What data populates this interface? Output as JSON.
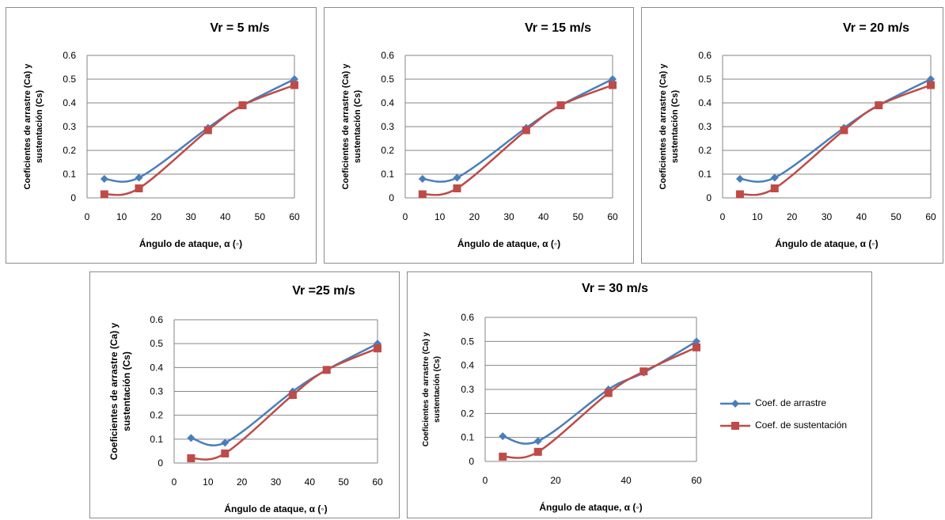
{
  "colors": {
    "arrastre": "#4a7ebb",
    "sustentacion": "#be4b48",
    "grid": "#868686",
    "axis": "#868686"
  },
  "legend": {
    "arrastre_label": "Coef. de arrastre",
    "sustentacion_label": "Coef. de sustentación"
  },
  "chart_data": [
    {
      "type": "line",
      "title": "Vr = 5 m/s",
      "xlabel": "Ángulo de ataque, α (◦)",
      "ylabel": [
        "Coeficientes de arrastre (Ca) y",
        "sustentación (Cs)"
      ],
      "xlim": [
        0,
        60
      ],
      "xticks": [
        0,
        10,
        20,
        30,
        40,
        50,
        60
      ],
      "ylim": [
        0,
        0.6
      ],
      "yticks": [
        "0",
        "0.1",
        "0.2",
        "0.3",
        "0.4",
        "0.5",
        "0.6"
      ],
      "grid": true,
      "x": [
        5,
        15,
        35,
        45,
        60
      ],
      "series": [
        {
          "name": "Coef. de arrastre",
          "values": [
            0.08,
            0.085,
            0.295,
            0.39,
            0.5
          ]
        },
        {
          "name": "Coef. de sustentación",
          "values": [
            0.015,
            0.04,
            0.285,
            0.39,
            0.475
          ]
        }
      ]
    },
    {
      "type": "line",
      "title": "Vr = 15 m/s",
      "xlabel": "Ángulo de ataque, α (◦)",
      "ylabel": [
        "Coeficientes de arrastre (Ca) y",
        "sustentación (Cs)"
      ],
      "xlim": [
        0,
        60
      ],
      "xticks": [
        0,
        10,
        20,
        30,
        40,
        50,
        60
      ],
      "ylim": [
        0,
        0.6
      ],
      "yticks": [
        "0",
        "0.1",
        "0.2",
        "0.3",
        "0.4",
        "0.5",
        "0.6"
      ],
      "grid": true,
      "x": [
        5,
        15,
        35,
        45,
        60
      ],
      "series": [
        {
          "name": "Coef. de arrastre",
          "values": [
            0.08,
            0.085,
            0.295,
            0.39,
            0.5
          ]
        },
        {
          "name": "Coef. de sustentación",
          "values": [
            0.015,
            0.04,
            0.285,
            0.39,
            0.475
          ]
        }
      ]
    },
    {
      "type": "line",
      "title": "Vr = 20 m/s",
      "xlabel": "Ángulo de ataque, α (◦)",
      "ylabel": [
        "Coeficientes de arrastre (Ca) y",
        "sustentación (Cs)"
      ],
      "xlim": [
        0,
        60
      ],
      "xticks": [
        0,
        10,
        20,
        30,
        40,
        50,
        60
      ],
      "ylim": [
        0,
        0.6
      ],
      "yticks": [
        "0",
        "0.1",
        "0.2",
        "0.3",
        "0.4",
        "0.5",
        "0.6"
      ],
      "grid": true,
      "x": [
        5,
        15,
        35,
        45,
        60
      ],
      "series": [
        {
          "name": "Coef. de arrastre",
          "values": [
            0.08,
            0.085,
            0.295,
            0.39,
            0.5
          ]
        },
        {
          "name": "Coef. de sustentación",
          "values": [
            0.015,
            0.04,
            0.285,
            0.39,
            0.475
          ]
        }
      ]
    },
    {
      "type": "line",
      "title": "Vr =25 m/s",
      "xlabel": "Ángulo de ataque, α (◦)",
      "ylabel": [
        "Coeficientes de arrastre (Ca) y",
        "sustentación (Cs)"
      ],
      "xlim": [
        0,
        60
      ],
      "xticks": [
        0,
        10,
        20,
        30,
        40,
        50,
        60
      ],
      "ylim": [
        0,
        0.6
      ],
      "yticks": [
        "0",
        "0.1",
        "0.2",
        "0.3",
        "0.4",
        "0.5",
        "0.6"
      ],
      "grid": true,
      "x": [
        5,
        15,
        35,
        45,
        60
      ],
      "series": [
        {
          "name": "Coef. de arrastre",
          "values": [
            0.105,
            0.085,
            0.3,
            0.39,
            0.5
          ]
        },
        {
          "name": "Coef. de sustentación",
          "values": [
            0.02,
            0.04,
            0.285,
            0.39,
            0.48
          ]
        }
      ]
    },
    {
      "type": "line",
      "title": "Vr = 30 m/s",
      "xlabel": "Ángulo de ataque, α (◦)",
      "ylabel": [
        "Coeficientes de arrastre (Ca) y",
        "sustentación (Cs)"
      ],
      "xlim": [
        0,
        60
      ],
      "xticks": [
        0,
        20,
        40,
        60
      ],
      "ylim": [
        0,
        0.6
      ],
      "yticks": [
        "0",
        "0.1",
        "0.2",
        "0.3",
        "0.4",
        "0.5",
        "0.6"
      ],
      "grid": true,
      "legend_position": "right",
      "x": [
        5,
        15,
        35,
        45,
        60
      ],
      "series": [
        {
          "name": "Coef. de arrastre",
          "values": [
            0.105,
            0.085,
            0.3,
            0.37,
            0.5
          ]
        },
        {
          "name": "Coef. de sustentación",
          "values": [
            0.02,
            0.04,
            0.285,
            0.375,
            0.475
          ]
        }
      ]
    }
  ]
}
